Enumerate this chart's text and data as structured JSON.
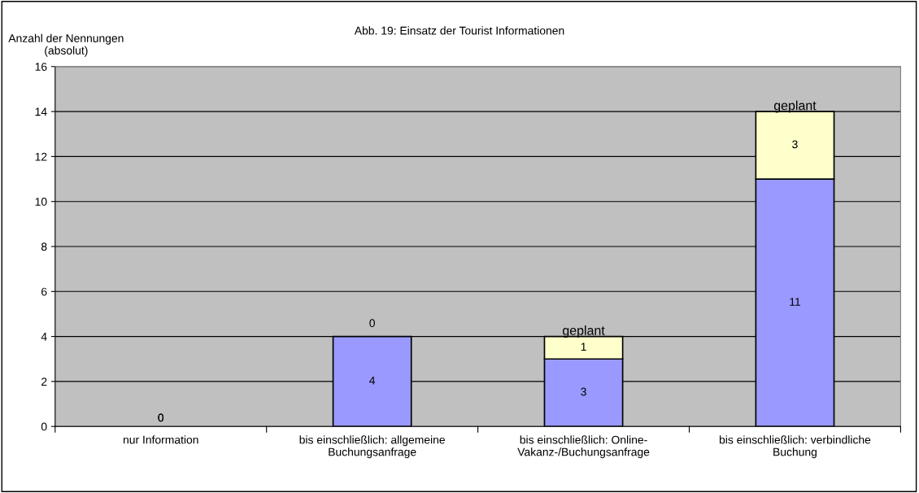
{
  "chart_data": {
    "type": "bar",
    "title": "Abb. 19: Einsatz der Tourist Informationen",
    "ylabel": "Anzahl der Nennungen\n(absolut)",
    "categories": [
      "nur Information",
      "bis einschließlich: allgemeine\nBuchungsanfrage",
      "bis einschließlich: Online-\nVakanz-/Buchungsanfrage",
      "bis einschließlich: verbindliche\nBuchung"
    ],
    "stacked": true,
    "series": [
      {
        "color": "#9999ff",
        "values": [
          0,
          4,
          3,
          11
        ],
        "value_labels": [
          "0",
          "4",
          "3",
          "11"
        ]
      },
      {
        "color": "#ffffcc",
        "values": [
          0,
          0,
          1,
          3
        ],
        "value_labels": [
          "0",
          "0",
          "1",
          "3"
        ]
      }
    ],
    "annotations": [
      {
        "text": "geplant",
        "x": "bis einschließlich: Online-\nVakanz-/Buchungsanfrage",
        "y": 4
      },
      {
        "text": "geplant",
        "x": "bis einschließlich: verbindliche\nBuchung",
        "y": 14
      }
    ],
    "ylim": [
      0,
      16
    ],
    "yticks": [
      0,
      2,
      4,
      6,
      8,
      10,
      12,
      14,
      16
    ],
    "grid": "y",
    "legend": false
  }
}
